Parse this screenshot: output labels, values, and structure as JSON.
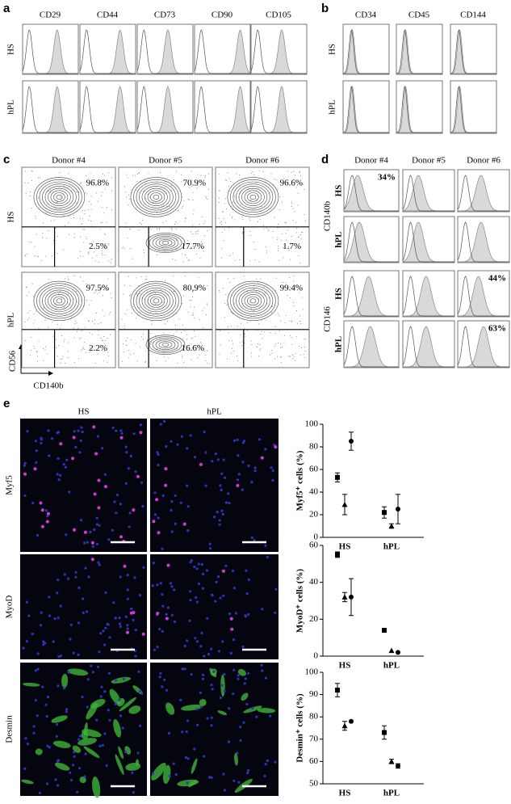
{
  "panel_a": {
    "label": "a",
    "columns": [
      "CD29",
      "CD44",
      "CD73",
      "CD90",
      "CD105"
    ],
    "rows": [
      "HS",
      "hPL"
    ]
  },
  "panel_b": {
    "label": "b",
    "columns": [
      "CD34",
      "CD45",
      "CD144"
    ],
    "rows": [
      "HS",
      "hPL"
    ]
  },
  "panel_c": {
    "label": "c",
    "columns": [
      "Donor #4",
      "Donor #5",
      "Donor #6"
    ],
    "rows": [
      "HS",
      "hPL"
    ],
    "cells": [
      [
        {
          "upper": "96.8%",
          "lower": "2.5%"
        },
        {
          "upper": "70.9%",
          "lower": "17.7%"
        },
        {
          "upper": "96.6%",
          "lower": "1.7%"
        }
      ],
      [
        {
          "upper": "97.5%",
          "lower": "2.2%"
        },
        {
          "upper": "80,9%",
          "lower": "16.6%"
        },
        {
          "upper": "99.4%"
        }
      ]
    ],
    "y_axis": "CD56",
    "x_axis": "CD140b"
  },
  "panel_d": {
    "label": "d",
    "columns": [
      "Donor #4",
      "Donor #5",
      "Donor #6"
    ],
    "markers": [
      "CD140b",
      "CD146"
    ],
    "rows": [
      "HS",
      "hPL"
    ],
    "annotations": [
      "34%",
      "44%",
      "63%"
    ]
  },
  "panel_e": {
    "label": "e",
    "columns": [
      "HS",
      "hPL"
    ],
    "rows": [
      "Myf5",
      "MyoD",
      "Desmin"
    ]
  },
  "chart_data": [
    {
      "type": "dot",
      "ylabel": "Myf5⁺ cells (%)",
      "categories": [
        "HS",
        "hPL"
      ],
      "ylim": [
        0,
        100
      ],
      "yticks": [
        0,
        20,
        40,
        60,
        80,
        100
      ],
      "series": [
        {
          "marker": "square",
          "color": "#000000",
          "values": [
            53,
            22
          ],
          "errors": [
            4,
            5
          ]
        },
        {
          "marker": "triangle",
          "color": "#000000",
          "values": [
            29,
            10
          ],
          "errors": [
            9,
            2
          ]
        },
        {
          "marker": "circle",
          "color": "#000000",
          "values": [
            85,
            25
          ],
          "errors": [
            8,
            13
          ]
        }
      ]
    },
    {
      "type": "dot",
      "ylabel": "MyoD⁺ cells (%)",
      "categories": [
        "HS",
        "hPL"
      ],
      "ylim": [
        0,
        60
      ],
      "yticks": [
        0,
        20,
        40,
        60
      ],
      "series": [
        {
          "marker": "square",
          "color": "#000000",
          "values": [
            55,
            14
          ],
          "errors": [
            1.5,
            null
          ]
        },
        {
          "marker": "triangle",
          "color": "#000000",
          "values": [
            32,
            3
          ],
          "errors": [
            2.5,
            null
          ]
        },
        {
          "marker": "circle",
          "color": "#000000",
          "values": [
            32,
            2
          ],
          "errors": [
            10,
            null
          ]
        }
      ]
    },
    {
      "type": "dot",
      "ylabel": "Desmin⁺ cells (%)",
      "categories": [
        "HS",
        "hPL"
      ],
      "ylim": [
        50,
        100
      ],
      "yticks": [
        50,
        60,
        70,
        80,
        90,
        100
      ],
      "series": [
        {
          "marker": "square",
          "color": "#000000",
          "values": [
            92,
            73
          ],
          "errors": [
            3,
            3
          ]
        },
        {
          "marker": "triangle",
          "color": "#000000",
          "values": [
            76,
            60
          ],
          "errors": [
            2,
            1
          ]
        },
        {
          "marker": "circle",
          "color": "#000000",
          "values": [
            78,
            58
          ],
          "errors": [
            null,
            1
          ]
        }
      ]
    }
  ]
}
